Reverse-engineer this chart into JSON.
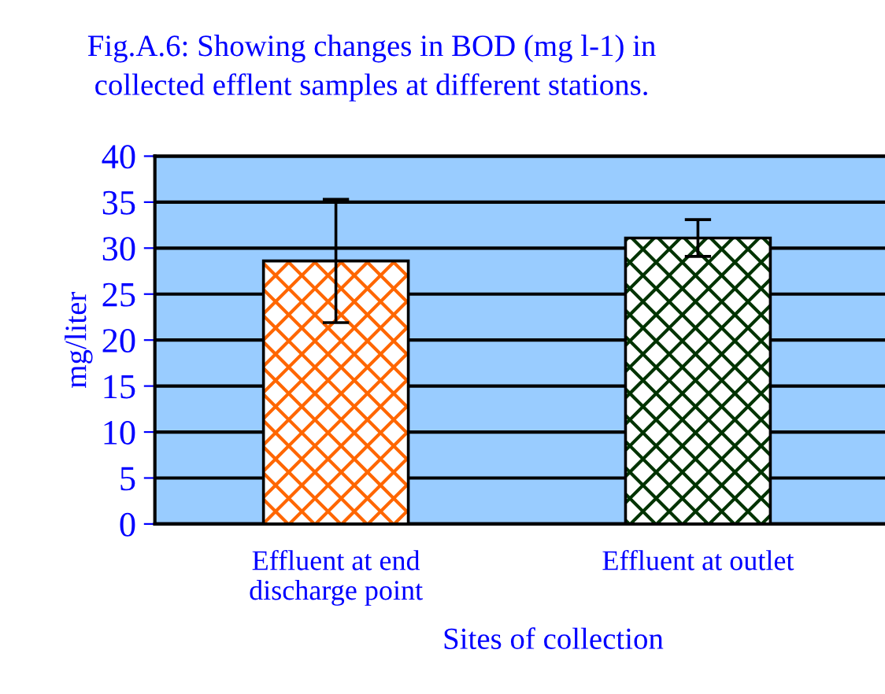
{
  "chart_data": {
    "type": "bar",
    "title": "Fig.A.6: Showing changes in BOD (mg l-1) in\ncollected efflent samples at different stations.",
    "xlabel": "Sites of collection",
    "ylabel": "mg/liter",
    "categories": [
      "Effluent at end\ndischarge point",
      "Effluent at outlet"
    ],
    "values": [
      28.6,
      31.1
    ],
    "colors": [
      "#ff6600",
      "#003300"
    ],
    "errors": [
      6.7,
      2.0
    ],
    "ylim": [
      0,
      40
    ],
    "yticks": [
      0,
      5,
      10,
      15,
      20,
      25,
      30,
      35,
      40
    ],
    "grid": "y"
  }
}
